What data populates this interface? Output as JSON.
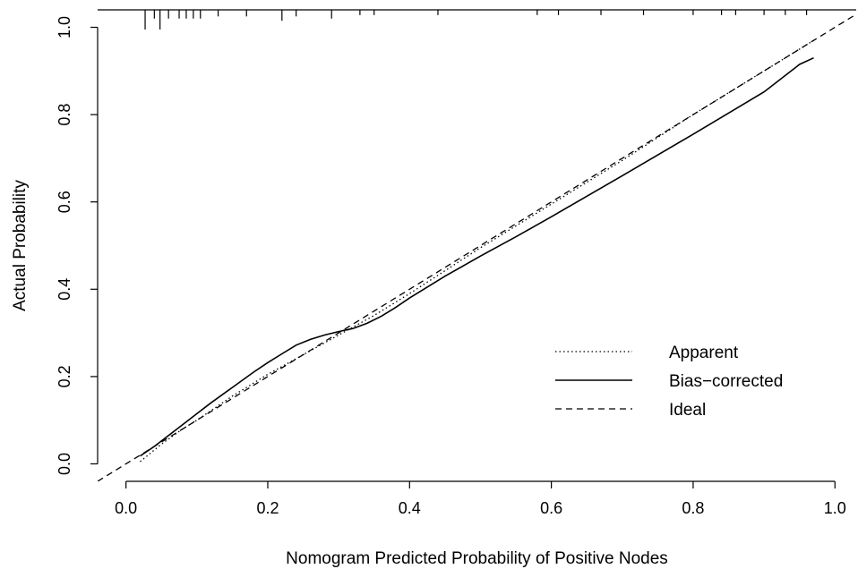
{
  "chart_data": {
    "type": "line",
    "xlabel": "Nomogram Predicted Probability of Positive Nodes",
    "ylabel": "Actual Probability",
    "xlim": [
      -0.04,
      1.03
    ],
    "ylim": [
      -0.04,
      1.04
    ],
    "x_ticks": [
      0.0,
      0.2,
      0.4,
      0.6,
      0.8,
      1.0
    ],
    "y_ticks": [
      0.0,
      0.2,
      0.4,
      0.6,
      0.8,
      1.0
    ],
    "x_tick_labels": [
      "0.0",
      "0.2",
      "0.4",
      "0.6",
      "0.8",
      "1.0"
    ],
    "y_tick_labels": [
      "0.0",
      "0.2",
      "0.4",
      "0.6",
      "0.8",
      "1.0"
    ],
    "grid": false,
    "legend_position": "bottom-right",
    "series": [
      {
        "name": "Apparent",
        "style": "dotted",
        "color": "#000000",
        "x": [
          0.02,
          0.05,
          0.08,
          0.1,
          0.15,
          0.2,
          0.25,
          0.3,
          0.35,
          0.4,
          0.5,
          0.6,
          0.7,
          0.8,
          0.9,
          0.97
        ],
        "y": [
          0.005,
          0.045,
          0.08,
          0.1,
          0.155,
          0.205,
          0.25,
          0.295,
          0.34,
          0.39,
          0.495,
          0.595,
          0.695,
          0.8,
          0.9,
          0.97
        ]
      },
      {
        "name": "Bias−corrected",
        "style": "solid",
        "color": "#000000",
        "x": [
          0.02,
          0.04,
          0.06,
          0.08,
          0.1,
          0.12,
          0.15,
          0.18,
          0.2,
          0.22,
          0.24,
          0.26,
          0.28,
          0.3,
          0.32,
          0.34,
          0.36,
          0.38,
          0.4,
          0.45,
          0.5,
          0.55,
          0.6,
          0.7,
          0.8,
          0.9,
          0.95,
          0.97
        ],
        "y": [
          0.018,
          0.04,
          0.065,
          0.09,
          0.115,
          0.14,
          0.175,
          0.21,
          0.232,
          0.252,
          0.272,
          0.285,
          0.295,
          0.303,
          0.31,
          0.322,
          0.338,
          0.358,
          0.38,
          0.43,
          0.476,
          0.52,
          0.566,
          0.66,
          0.755,
          0.852,
          0.915,
          0.93
        ]
      },
      {
        "name": "Ideal",
        "style": "dashed",
        "color": "#000000",
        "x": [
          -0.04,
          1.03
        ],
        "y": [
          -0.04,
          1.03
        ]
      }
    ],
    "rug_ticks": [
      {
        "x": 0.027,
        "len": 0.045
      },
      {
        "x": 0.048,
        "len": 0.045
      },
      {
        "x": 0.04,
        "len": 0.02
      },
      {
        "x": 0.06,
        "len": 0.02
      },
      {
        "x": 0.075,
        "len": 0.02
      },
      {
        "x": 0.085,
        "len": 0.02
      },
      {
        "x": 0.095,
        "len": 0.02
      },
      {
        "x": 0.105,
        "len": 0.02
      },
      {
        "x": 0.13,
        "len": 0.015
      },
      {
        "x": 0.17,
        "len": 0.015
      },
      {
        "x": 0.22,
        "len": 0.025
      },
      {
        "x": 0.24,
        "len": 0.015
      },
      {
        "x": 0.29,
        "len": 0.02
      },
      {
        "x": 0.33,
        "len": 0.012
      },
      {
        "x": 0.35,
        "len": 0.012
      },
      {
        "x": 0.44,
        "len": 0.012
      },
      {
        "x": 0.58,
        "len": 0.012
      },
      {
        "x": 0.61,
        "len": 0.012
      },
      {
        "x": 0.67,
        "len": 0.012
      },
      {
        "x": 0.73,
        "len": 0.012
      },
      {
        "x": 0.8,
        "len": 0.012
      },
      {
        "x": 0.84,
        "len": 0.012
      },
      {
        "x": 0.86,
        "len": 0.012
      },
      {
        "x": 0.9,
        "len": 0.012
      },
      {
        "x": 0.93,
        "len": 0.012
      },
      {
        "x": 0.96,
        "len": 0.012
      }
    ],
    "legend": [
      {
        "label": "Apparent",
        "style": "dotted"
      },
      {
        "label": "Bias−corrected",
        "style": "solid"
      },
      {
        "label": "Ideal",
        "style": "dashed"
      }
    ]
  }
}
